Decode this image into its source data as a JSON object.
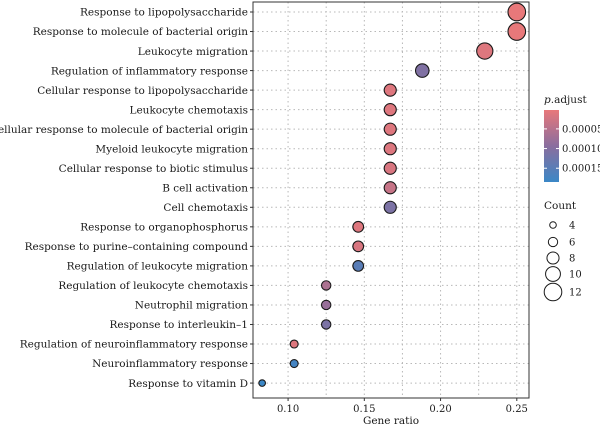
{
  "chart_data": {
    "type": "scatter",
    "xlabel": "Gene ratio",
    "ylabel": "",
    "xlim": [
      0.077,
      0.258
    ],
    "xticks": [
      0.1,
      0.15,
      0.2,
      0.25
    ],
    "xtick_labels": [
      "0.10",
      "0.15",
      "0.20",
      "0.25"
    ],
    "grid": true,
    "legend_placement": "right",
    "color_legend": {
      "title_italic": "p",
      "title_rest": ".adjust",
      "ticks": [
        5e-05,
        0.0001,
        0.00015
      ],
      "tick_labels": [
        "0.00005",
        "0.00010",
        "0.00015"
      ],
      "range": [
        2e-06,
        0.000185
      ],
      "low_color": "#e8787a",
      "mid_color": "#8a6e9e",
      "high_color": "#3b87c6"
    },
    "size_legend": {
      "title": "Count",
      "values": [
        4,
        6,
        8,
        10,
        12
      ],
      "labels": [
        "4",
        "6",
        "8",
        "10",
        "12"
      ]
    },
    "points": [
      {
        "term": "Response to lipopolysaccharide",
        "gene_ratio": 0.25,
        "count": 12,
        "p_adjust": 2e-06
      },
      {
        "term": "Response to molecule of bacterial origin",
        "gene_ratio": 0.25,
        "count": 12,
        "p_adjust": 2e-06
      },
      {
        "term": "Leukocyte migration",
        "gene_ratio": 0.229,
        "count": 11,
        "p_adjust": 1.2e-05
      },
      {
        "term": "Regulation of inflammatory response",
        "gene_ratio": 0.188,
        "count": 9,
        "p_adjust": 0.000105
      },
      {
        "term": "Cellular response to lipopolysaccharide",
        "gene_ratio": 0.167,
        "count": 8,
        "p_adjust": 1.2e-05
      },
      {
        "term": "Leukocyte chemotaxis",
        "gene_ratio": 0.167,
        "count": 8,
        "p_adjust": 1.2e-05
      },
      {
        "term": "Cellular response to molecule of bacterial origin",
        "gene_ratio": 0.167,
        "count": 8,
        "p_adjust": 1.2e-05
      },
      {
        "term": "Myeloid leukocyte migration",
        "gene_ratio": 0.167,
        "count": 8,
        "p_adjust": 1.4e-05
      },
      {
        "term": "Cellular response to biotic stimulus",
        "gene_ratio": 0.167,
        "count": 8,
        "p_adjust": 1.8e-05
      },
      {
        "term": "B cell activation",
        "gene_ratio": 0.167,
        "count": 8,
        "p_adjust": 3.5e-05
      },
      {
        "term": "Cell chemotaxis",
        "gene_ratio": 0.167,
        "count": 8,
        "p_adjust": 0.00011
      },
      {
        "term": "Response to organophosphorus",
        "gene_ratio": 0.146,
        "count": 7,
        "p_adjust": 1.2e-05
      },
      {
        "term": "Response to purine–containing compound",
        "gene_ratio": 0.146,
        "count": 7,
        "p_adjust": 1.8e-05
      },
      {
        "term": "Regulation of leukocyte migration",
        "gene_ratio": 0.146,
        "count": 7,
        "p_adjust": 0.00015
      },
      {
        "term": "Regulation of leukocyte chemotaxis",
        "gene_ratio": 0.125,
        "count": 6,
        "p_adjust": 6e-05
      },
      {
        "term": "Neutrophil migration",
        "gene_ratio": 0.125,
        "count": 6,
        "p_adjust": 8e-05
      },
      {
        "term": "Response to interleukin–1",
        "gene_ratio": 0.125,
        "count": 6,
        "p_adjust": 0.00011
      },
      {
        "term": "Regulation of neuroinflammatory response",
        "gene_ratio": 0.104,
        "count": 5,
        "p_adjust": 1.2e-05
      },
      {
        "term": "Neuroinflammatory response",
        "gene_ratio": 0.104,
        "count": 5,
        "p_adjust": 0.000175
      },
      {
        "term": "Response to vitamin D",
        "gene_ratio": 0.083,
        "count": 4,
        "p_adjust": 0.000185
      }
    ]
  }
}
